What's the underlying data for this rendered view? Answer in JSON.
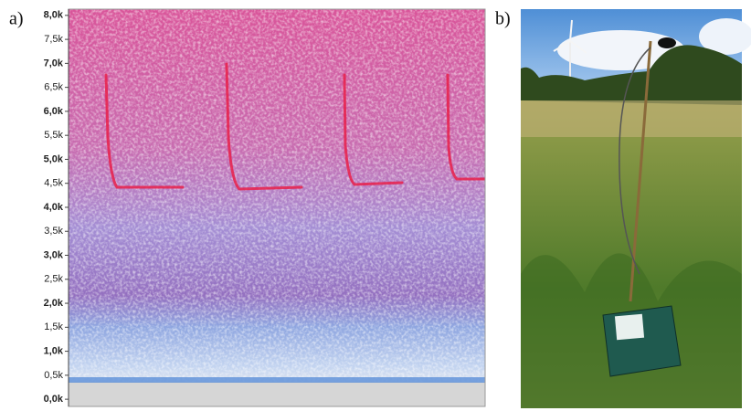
{
  "panel_labels": [
    "a)",
    "b)"
  ],
  "chart_data": {
    "type": "spectrogram",
    "ylim": [
      -150,
      8130
    ],
    "yticks": [
      {
        "value": 0,
        "label": "0,0k"
      },
      {
        "value": 500,
        "label": "0,5k"
      },
      {
        "value": 1000,
        "label": "1,0k"
      },
      {
        "value": 1500,
        "label": "1,5k"
      },
      {
        "value": 2000,
        "label": "2,0k"
      },
      {
        "value": 2500,
        "label": "2,5k"
      },
      {
        "value": 3000,
        "label": "3,0k"
      },
      {
        "value": 3500,
        "label": "3,5k"
      },
      {
        "value": 4000,
        "label": "4,0k"
      },
      {
        "value": 4500,
        "label": "4,5k"
      },
      {
        "value": 5000,
        "label": "5,0k"
      },
      {
        "value": 5500,
        "label": "5,5k"
      },
      {
        "value": 6000,
        "label": "6,0k"
      },
      {
        "value": 6500,
        "label": "6,5k"
      },
      {
        "value": 7000,
        "label": "7,0k"
      },
      {
        "value": 7500,
        "label": "7,5k"
      },
      {
        "value": 8000,
        "label": "8,0k"
      }
    ]
  }
}
